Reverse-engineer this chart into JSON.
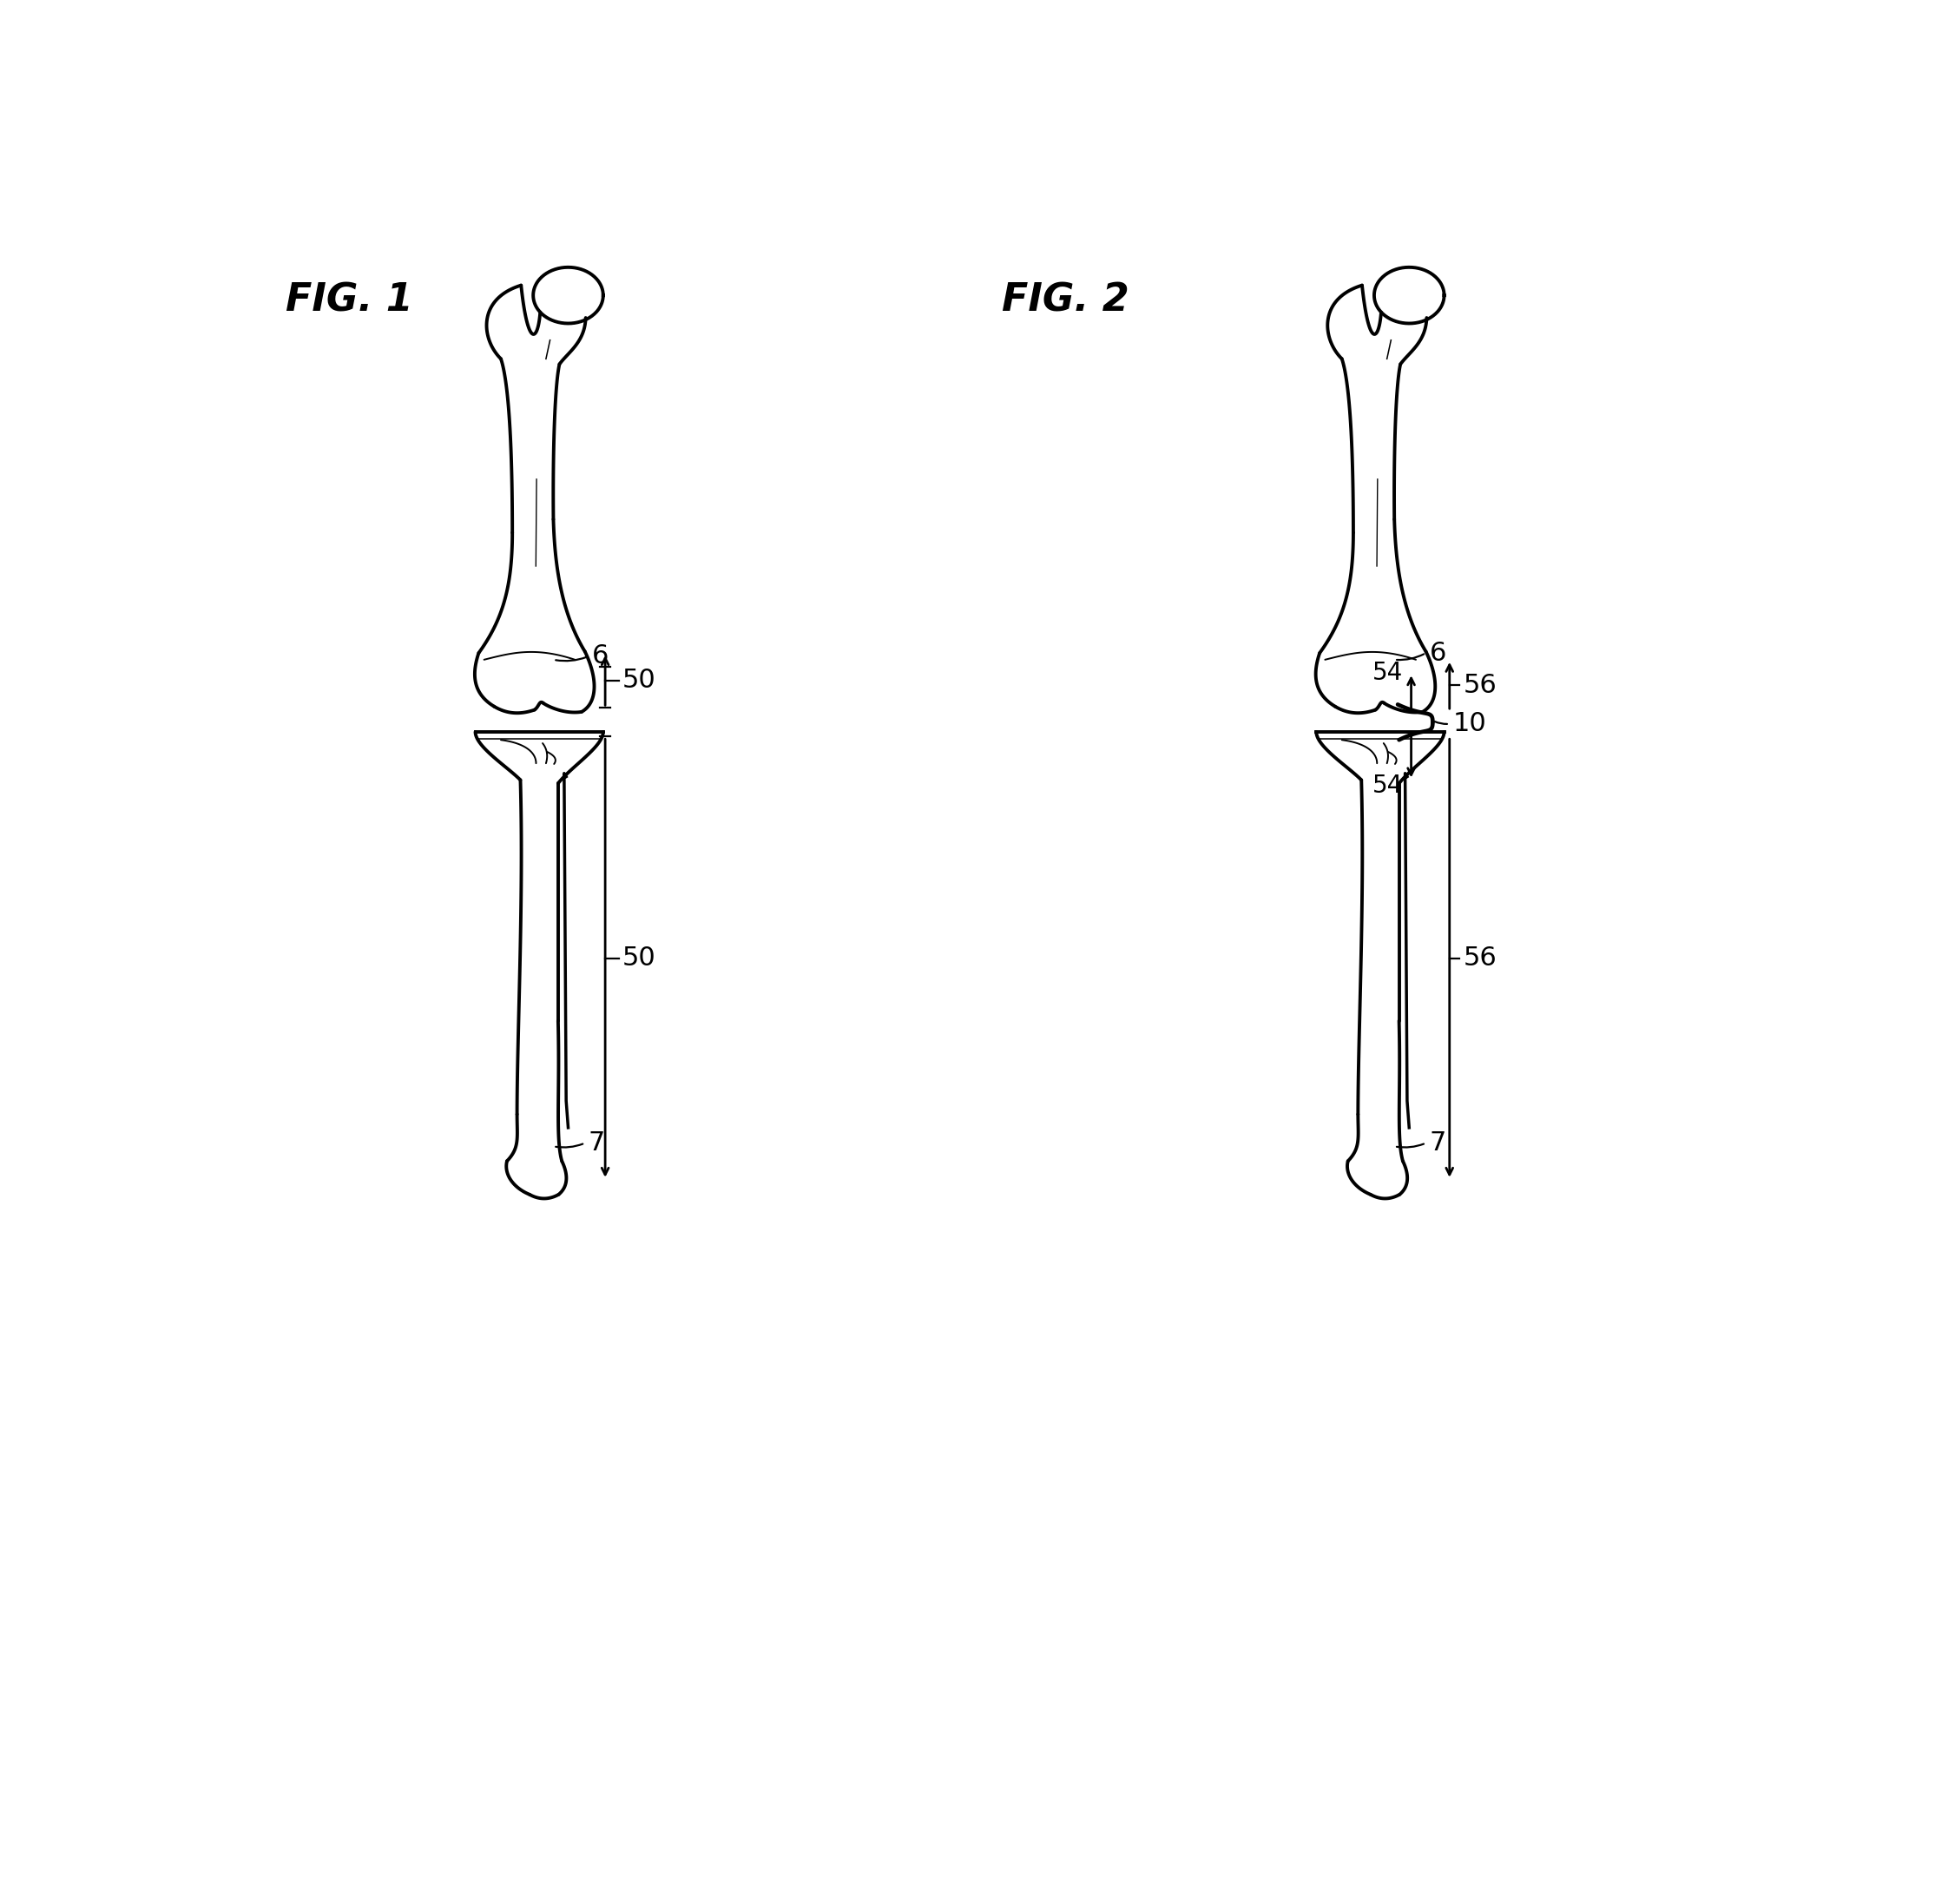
{
  "fig1_title": "FIG. 1",
  "fig2_title": "FIG. 2",
  "title_fontsize": 32,
  "label_fontsize": 22,
  "background_color": "#ffffff",
  "line_color": "#000000",
  "lw_bone": 2.8,
  "lw_detail": 1.4,
  "lw_leader": 1.6,
  "lw_arrow": 2.0,
  "arrow_mutation_scale": 14
}
